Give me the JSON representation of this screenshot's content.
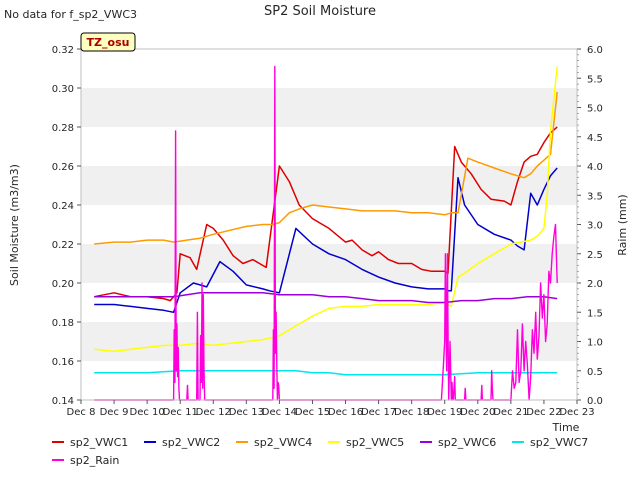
{
  "header": {
    "no_data_note": "No data for f_sp2_VWC3",
    "badge": "TZ_osu"
  },
  "chart_data": {
    "type": "line",
    "title": "SP2 Soil Moisture",
    "xlabel": "Time",
    "ylabel": "Soil Moisture (m3/m3)",
    "y2label": "Raim (mm)",
    "xlim": [
      8,
      23
    ],
    "ylim": [
      0.14,
      0.32
    ],
    "y2lim": [
      0.0,
      6.0
    ],
    "grid": "horizontal bands",
    "legend_position": "bottom",
    "x_ticks": [
      8,
      9,
      10,
      11,
      12,
      13,
      14,
      15,
      16,
      17,
      18,
      19,
      20,
      21,
      22,
      23
    ],
    "x_tick_labels": [
      "Dec 8",
      "Dec 9",
      "Dec 10",
      "Dec 11",
      "Dec 12",
      "Dec 13",
      "Dec 14",
      "Dec 15",
      "Dec 16",
      "Dec 17",
      "Dec 18",
      "Dec 19",
      "Dec 20",
      "Dec 21",
      "Dec 22",
      "Dec 23"
    ],
    "y_ticks": [
      0.14,
      0.16,
      0.18,
      0.2,
      0.22,
      0.24,
      0.26,
      0.28,
      0.3,
      0.32
    ],
    "y_tick_labels": [
      "0.14",
      "0.16",
      "0.18",
      "0.20",
      "0.22",
      "0.24",
      "0.26",
      "0.28",
      "0.30",
      "0.32"
    ],
    "y2_ticks": [
      0,
      0.5,
      1,
      1.5,
      2,
      2.5,
      3,
      3.5,
      4,
      4.5,
      5,
      5.5,
      6
    ],
    "y2_tick_labels": [
      "0.0",
      "0.5",
      "1.0",
      "1.5",
      "2.0",
      "2.5",
      "3.0",
      "3.5",
      "4.0",
      "4.5",
      "5.0",
      "5.5",
      "6.0"
    ],
    "series": [
      {
        "name": "sp2_VWC1",
        "color": "#dd0000",
        "axis": "left",
        "x": [
          8.4,
          9.0,
          9.5,
          10.0,
          10.5,
          10.7,
          10.9,
          11.0,
          11.3,
          11.5,
          11.8,
          12.0,
          12.3,
          12.6,
          12.9,
          13.2,
          13.5,
          13.6,
          14.0,
          14.3,
          14.6,
          15.0,
          15.5,
          16.0,
          16.2,
          16.5,
          16.8,
          17.0,
          17.3,
          17.6,
          18.0,
          18.3,
          18.6,
          19.0,
          19.1,
          19.3,
          19.5,
          19.8,
          20.1,
          20.4,
          20.8,
          21.0,
          21.2,
          21.4,
          21.6,
          21.8,
          22.0,
          22.2,
          22.4
        ],
        "y": [
          0.193,
          0.195,
          0.193,
          0.193,
          0.192,
          0.191,
          0.195,
          0.215,
          0.213,
          0.207,
          0.23,
          0.228,
          0.222,
          0.214,
          0.21,
          0.212,
          0.209,
          0.208,
          0.26,
          0.252,
          0.24,
          0.233,
          0.228,
          0.221,
          0.222,
          0.217,
          0.214,
          0.216,
          0.212,
          0.21,
          0.21,
          0.207,
          0.206,
          0.206,
          0.205,
          0.27,
          0.262,
          0.256,
          0.248,
          0.243,
          0.242,
          0.24,
          0.252,
          0.262,
          0.265,
          0.266,
          0.272,
          0.277,
          0.28
        ]
      },
      {
        "name": "sp2_VWC2",
        "color": "#0000cc",
        "axis": "left",
        "x": [
          8.4,
          9.0,
          9.5,
          10.0,
          10.5,
          10.8,
          11.0,
          11.4,
          11.6,
          11.8,
          12.2,
          12.6,
          13.0,
          13.5,
          13.7,
          14.0,
          14.5,
          15.0,
          15.5,
          16.0,
          16.5,
          17.0,
          17.5,
          18.0,
          18.5,
          19.0,
          19.1,
          19.2,
          19.4,
          19.6,
          20.0,
          20.5,
          21.0,
          21.2,
          21.4,
          21.6,
          21.8,
          22.0,
          22.2,
          22.4
        ],
        "y": [
          0.189,
          0.189,
          0.188,
          0.187,
          0.186,
          0.185,
          0.195,
          0.2,
          0.199,
          0.198,
          0.211,
          0.206,
          0.199,
          0.197,
          0.196,
          0.195,
          0.228,
          0.22,
          0.215,
          0.212,
          0.207,
          0.203,
          0.2,
          0.198,
          0.197,
          0.197,
          0.196,
          0.196,
          0.254,
          0.24,
          0.23,
          0.225,
          0.222,
          0.219,
          0.217,
          0.246,
          0.24,
          0.248,
          0.255,
          0.259
        ]
      },
      {
        "name": "sp2_VWC4",
        "color": "#ff9900",
        "axis": "left",
        "x": [
          8.4,
          9.0,
          9.5,
          10.0,
          10.5,
          10.8,
          11.2,
          11.6,
          12.0,
          12.5,
          13.0,
          13.5,
          13.8,
          14.0,
          14.3,
          14.6,
          15.0,
          15.5,
          16.0,
          16.5,
          17.0,
          17.5,
          18.0,
          18.5,
          19.0,
          19.2,
          19.4,
          19.7,
          20.0,
          20.5,
          21.0,
          21.2,
          21.4,
          21.6,
          21.8,
          22.0,
          22.2,
          22.4
        ],
        "y": [
          0.22,
          0.221,
          0.221,
          0.222,
          0.222,
          0.221,
          0.222,
          0.223,
          0.225,
          0.227,
          0.229,
          0.23,
          0.23,
          0.231,
          0.236,
          0.238,
          0.24,
          0.239,
          0.238,
          0.237,
          0.237,
          0.237,
          0.236,
          0.236,
          0.235,
          0.236,
          0.236,
          0.264,
          0.262,
          0.259,
          0.256,
          0.255,
          0.254,
          0.256,
          0.26,
          0.263,
          0.266,
          0.298
        ]
      },
      {
        "name": "sp2_VWC5",
        "color": "#ffff00",
        "axis": "left",
        "x": [
          8.4,
          9.0,
          9.5,
          10.0,
          10.5,
          11.0,
          11.5,
          12.0,
          12.5,
          13.0,
          13.5,
          14.0,
          14.5,
          15.0,
          15.5,
          16.0,
          16.5,
          17.0,
          17.5,
          18.0,
          18.5,
          19.0,
          19.2,
          19.4,
          19.6,
          20.0,
          20.5,
          21.0,
          21.3,
          21.6,
          21.8,
          22.0,
          22.1,
          22.2,
          22.4
        ],
        "y": [
          0.166,
          0.165,
          0.166,
          0.167,
          0.168,
          0.168,
          0.169,
          0.168,
          0.169,
          0.17,
          0.171,
          0.173,
          0.178,
          0.183,
          0.187,
          0.188,
          0.188,
          0.189,
          0.189,
          0.189,
          0.189,
          0.19,
          0.188,
          0.203,
          0.205,
          0.21,
          0.215,
          0.22,
          0.221,
          0.222,
          0.224,
          0.228,
          0.245,
          0.278,
          0.311
        ]
      },
      {
        "name": "sp2_VWC6",
        "color": "#9900dd",
        "axis": "left",
        "x": [
          8.4,
          9.0,
          9.5,
          10.0,
          10.5,
          10.8,
          11.2,
          11.6,
          12.0,
          12.5,
          13.0,
          13.5,
          14.0,
          14.5,
          15.0,
          15.5,
          16.0,
          16.5,
          17.0,
          17.5,
          18.0,
          18.5,
          19.0,
          19.5,
          20.0,
          20.5,
          21.0,
          21.5,
          22.0,
          22.4
        ],
        "y": [
          0.193,
          0.193,
          0.193,
          0.193,
          0.193,
          0.193,
          0.194,
          0.195,
          0.195,
          0.195,
          0.195,
          0.195,
          0.194,
          0.194,
          0.194,
          0.193,
          0.193,
          0.192,
          0.191,
          0.191,
          0.191,
          0.19,
          0.19,
          0.191,
          0.191,
          0.192,
          0.192,
          0.193,
          0.193,
          0.192
        ]
      },
      {
        "name": "sp2_VWC7",
        "color": "#00e5ee",
        "axis": "left",
        "x": [
          8.4,
          9.0,
          10.0,
          11.0,
          12.0,
          13.0,
          14.0,
          14.5,
          15.0,
          15.5,
          16.0,
          17.0,
          18.0,
          19.0,
          20.0,
          21.0,
          22.0,
          22.4
        ],
        "y": [
          0.154,
          0.154,
          0.154,
          0.155,
          0.155,
          0.155,
          0.155,
          0.155,
          0.154,
          0.154,
          0.153,
          0.153,
          0.153,
          0.153,
          0.154,
          0.154,
          0.154,
          0.154
        ]
      },
      {
        "name": "sp2_Rain",
        "color": "#ff00dd",
        "axis": "right",
        "x": [
          8.4,
          10.8,
          10.82,
          10.84,
          10.86,
          10.88,
          10.9,
          10.92,
          10.94,
          10.96,
          10.98,
          11.2,
          11.22,
          11.24,
          11.5,
          11.52,
          11.54,
          11.6,
          11.62,
          11.64,
          11.66,
          11.68,
          11.7,
          11.72,
          11.74,
          13.8,
          13.82,
          13.84,
          13.86,
          13.88,
          13.9,
          13.92,
          13.94,
          13.96,
          13.98,
          14.0,
          18.9,
          18.95,
          19.0,
          19.02,
          19.04,
          19.06,
          19.08,
          19.1,
          19.12,
          19.14,
          19.16,
          19.18,
          19.2,
          19.22,
          19.24,
          19.26,
          19.28,
          19.3,
          19.32,
          19.6,
          19.62,
          19.64,
          19.66,
          20.1,
          20.12,
          20.14,
          20.16,
          20.4,
          20.42,
          20.44,
          20.46,
          21.0,
          21.05,
          21.1,
          21.15,
          21.2,
          21.25,
          21.3,
          21.35,
          21.4,
          21.45,
          21.5,
          21.55,
          21.6,
          21.65,
          21.7,
          21.75,
          21.8,
          21.85,
          21.9,
          21.95,
          22.0,
          22.05,
          22.1,
          22.15,
          22.2,
          22.25,
          22.3,
          22.35,
          22.4
        ],
        "y": [
          0,
          0,
          1.2,
          0.3,
          4.6,
          0.5,
          1.3,
          0.4,
          0.9,
          0.2,
          0,
          0,
          0.25,
          0,
          0,
          1.5,
          0,
          0,
          1.1,
          0.3,
          2.0,
          0.2,
          1.8,
          0.5,
          0,
          0,
          1.2,
          0.2,
          5.7,
          0.8,
          1.5,
          0.6,
          0,
          0.3,
          0.25,
          0,
          0,
          0.5,
          1.0,
          2.5,
          1.2,
          0.5,
          2.5,
          1.2,
          0,
          0.5,
          1.0,
          0.5,
          0,
          0.3,
          0,
          0,
          0.2,
          0.4,
          0,
          0,
          0.2,
          0,
          0,
          0,
          0.25,
          0,
          0,
          0,
          0.5,
          0.2,
          0,
          0,
          0.5,
          0.2,
          0.3,
          1.2,
          0.3,
          0.5,
          1.3,
          0.5,
          1.0,
          0.6,
          0,
          0.4,
          1.2,
          0.8,
          1.5,
          0.7,
          1.1,
          2.0,
          1.4,
          1.8,
          1.0,
          1.3,
          2.2,
          2.0,
          2.5,
          2.8,
          3.0,
          2.0
        ]
      }
    ]
  }
}
